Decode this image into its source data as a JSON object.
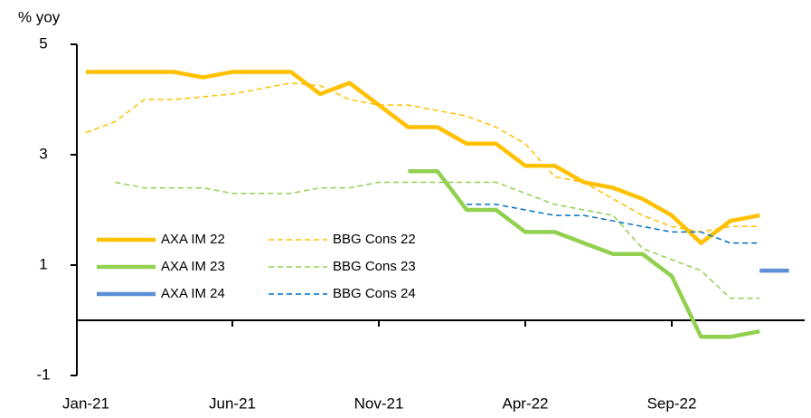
{
  "chart_data": {
    "type": "line",
    "y_axis_label": "% yoy",
    "categories": [
      "Jan-21",
      null,
      null,
      null,
      null,
      "Jun-21",
      null,
      null,
      null,
      null,
      "Nov-21",
      null,
      null,
      null,
      null,
      "Apr-22",
      null,
      null,
      null,
      null,
      "Sep-22",
      null,
      null,
      null,
      null
    ],
    "series": [
      {
        "name": "AXA IM 22",
        "color": "#FFC000",
        "style": "solid",
        "values": [
          4.5,
          4.5,
          4.5,
          4.5,
          4.4,
          4.5,
          4.5,
          4.5,
          4.1,
          4.3,
          3.9,
          3.5,
          3.5,
          3.2,
          3.2,
          2.8,
          2.8,
          2.5,
          2.4,
          2.2,
          1.9,
          1.4,
          1.8,
          1.9,
          null
        ]
      },
      {
        "name": "BBG Cons 22",
        "color": "#FFC000",
        "style": "dashed",
        "values": [
          3.4,
          3.6,
          4.0,
          4.0,
          4.05,
          4.1,
          4.2,
          4.3,
          4.25,
          4.0,
          3.9,
          3.9,
          3.8,
          3.7,
          3.5,
          3.2,
          2.6,
          2.5,
          2.2,
          1.9,
          1.7,
          1.6,
          1.7,
          1.7,
          null
        ]
      },
      {
        "name": "AXA IM 23",
        "color": "#92D050",
        "style": "solid",
        "values": [
          null,
          null,
          null,
          null,
          null,
          null,
          null,
          null,
          null,
          null,
          null,
          2.7,
          2.7,
          2.0,
          2.0,
          1.6,
          1.6,
          1.4,
          1.2,
          1.2,
          0.8,
          -0.3,
          -0.3,
          -0.2,
          null
        ]
      },
      {
        "name": "BBG Cons 23",
        "color": "#92D050",
        "style": "dashed",
        "values": [
          null,
          2.5,
          2.4,
          2.4,
          2.4,
          2.3,
          2.3,
          2.3,
          2.4,
          2.4,
          2.5,
          2.5,
          2.5,
          2.5,
          2.5,
          2.3,
          2.1,
          2.0,
          1.9,
          1.3,
          1.1,
          0.9,
          0.4,
          0.4,
          null
        ]
      },
      {
        "name": "AXA IM 24",
        "color": "#5B8FD6",
        "style": "solid",
        "values": [
          null,
          null,
          null,
          null,
          null,
          null,
          null,
          null,
          null,
          null,
          null,
          null,
          null,
          null,
          null,
          null,
          null,
          null,
          null,
          null,
          null,
          null,
          null,
          0.9,
          0.9
        ]
      },
      {
        "name": "BBG Cons 24",
        "color": "#0070C0",
        "style": "dashed",
        "values": [
          null,
          null,
          null,
          null,
          null,
          null,
          null,
          null,
          null,
          null,
          null,
          null,
          null,
          2.1,
          2.1,
          2.0,
          1.9,
          1.9,
          1.8,
          1.7,
          1.6,
          1.6,
          1.4,
          1.4,
          null
        ]
      }
    ],
    "ylim": [
      -1,
      5
    ],
    "yticks": [
      -1,
      1,
      3,
      5
    ],
    "legend_position": "lower left"
  }
}
